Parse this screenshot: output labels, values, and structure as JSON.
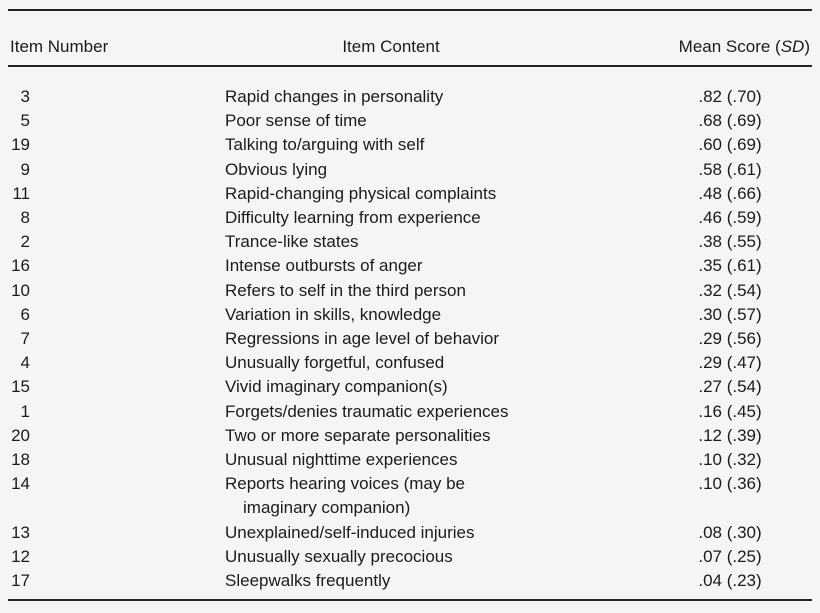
{
  "table": {
    "headers": {
      "item_number": "Item Number",
      "item_content": "Item Content",
      "mean_score_prefix": "Mean Score (",
      "mean_score_italic": "SD",
      "mean_score_suffix": ")"
    },
    "rows": [
      {
        "item": "3",
        "content": "Rapid changes in personality",
        "score": ".82 (.70)"
      },
      {
        "item": "5",
        "content": "Poor sense of time",
        "score": ".68 (.69)"
      },
      {
        "item": "19",
        "content": "Talking to/arguing with self",
        "score": ".60 (.69)"
      },
      {
        "item": "9",
        "content": "Obvious lying",
        "score": ".58 (.61)"
      },
      {
        "item": "11",
        "content": "Rapid-changing physical complaints",
        "score": ".48 (.66)"
      },
      {
        "item": "8",
        "content": "Difficulty learning from experience",
        "score": ".46 (.59)"
      },
      {
        "item": "2",
        "content": "Trance-like states",
        "score": ".38 (.55)"
      },
      {
        "item": "16",
        "content": "Intense outbursts of anger",
        "score": ".35 (.61)"
      },
      {
        "item": "10",
        "content": "Refers to self in the third person",
        "score": ".32 (.54)"
      },
      {
        "item": "6",
        "content": "Variation in skills, knowledge",
        "score": ".30 (.57)"
      },
      {
        "item": "7",
        "content": "Regressions in age level of behavior",
        "score": ".29 (.56)"
      },
      {
        "item": "4",
        "content": "Unusually forgetful, confused",
        "score": ".29 (.47)"
      },
      {
        "item": "15",
        "content": "Vivid imaginary companion(s)",
        "score": ".27 (.54)"
      },
      {
        "item": "1",
        "content": "Forgets/denies traumatic experiences",
        "score": ".16 (.45)"
      },
      {
        "item": "20",
        "content": "Two or more separate personalities",
        "score": ".12 (.39)"
      },
      {
        "item": "18",
        "content": "Unusual nighttime experiences",
        "score": ".10 (.32)"
      },
      {
        "item": "14",
        "content": "Reports hearing voices (may be",
        "content2": "imaginary companion)",
        "score": ".10 (.36)"
      },
      {
        "item": "13",
        "content": "Unexplained/self-induced injuries",
        "score": ".08 (.30)"
      },
      {
        "item": "12",
        "content": "Unusually sexually precocious",
        "score": ".07 (.25)"
      },
      {
        "item": "17",
        "content": "Sleepwalks frequently",
        "score": ".04 (.23)"
      }
    ],
    "colors": {
      "background": "#f6f5f3",
      "text": "#1b1b1b",
      "rule": "#222222"
    }
  }
}
